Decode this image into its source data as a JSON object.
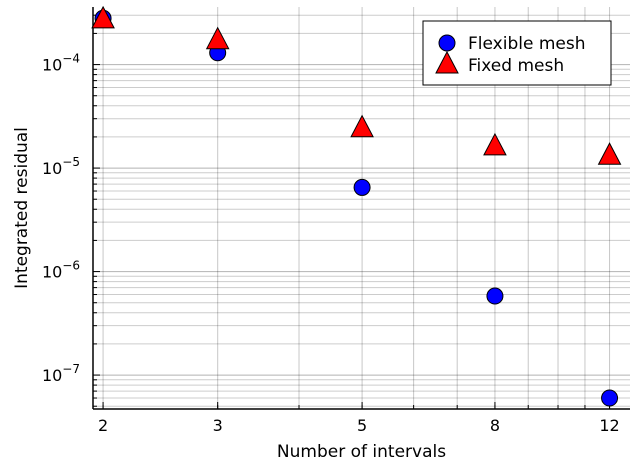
{
  "chart_data": {
    "type": "scatter",
    "xscale": "log",
    "yscale": "log",
    "xlabel": "Number of intervals",
    "ylabel": "Integrated residual",
    "xlim": [
      1.93,
      12.9
    ],
    "ylim": [
      4.7e-08,
      0.00036
    ],
    "x_ticks": [
      2,
      3,
      5,
      8,
      12
    ],
    "x_tick_labels": [
      "2",
      "3",
      "5",
      "8",
      "12"
    ],
    "y_ticks": [
      1e-07,
      1e-06,
      1e-05,
      0.0001
    ],
    "y_tick_labels": [
      {
        "base": "10",
        "exp": "−7"
      },
      {
        "base": "10",
        "exp": "−6"
      },
      {
        "base": "10",
        "exp": "−5"
      },
      {
        "base": "10",
        "exp": "−4"
      }
    ],
    "grid": true,
    "legend_position": "top-right",
    "series": [
      {
        "name": "Flexible mesh",
        "marker": "circle",
        "color": "#0000ff",
        "x": [
          2,
          3,
          5,
          8,
          12
        ],
        "y": [
          0.00028,
          0.00013,
          6.5e-06,
          5.8e-07,
          6e-08
        ]
      },
      {
        "name": "Fixed mesh",
        "marker": "triangle",
        "color": "#ff0000",
        "x": [
          2,
          3,
          5,
          8,
          12
        ],
        "y": [
          0.00027,
          0.00017,
          2.4e-05,
          1.6e-05,
          1.3e-05
        ]
      }
    ]
  }
}
